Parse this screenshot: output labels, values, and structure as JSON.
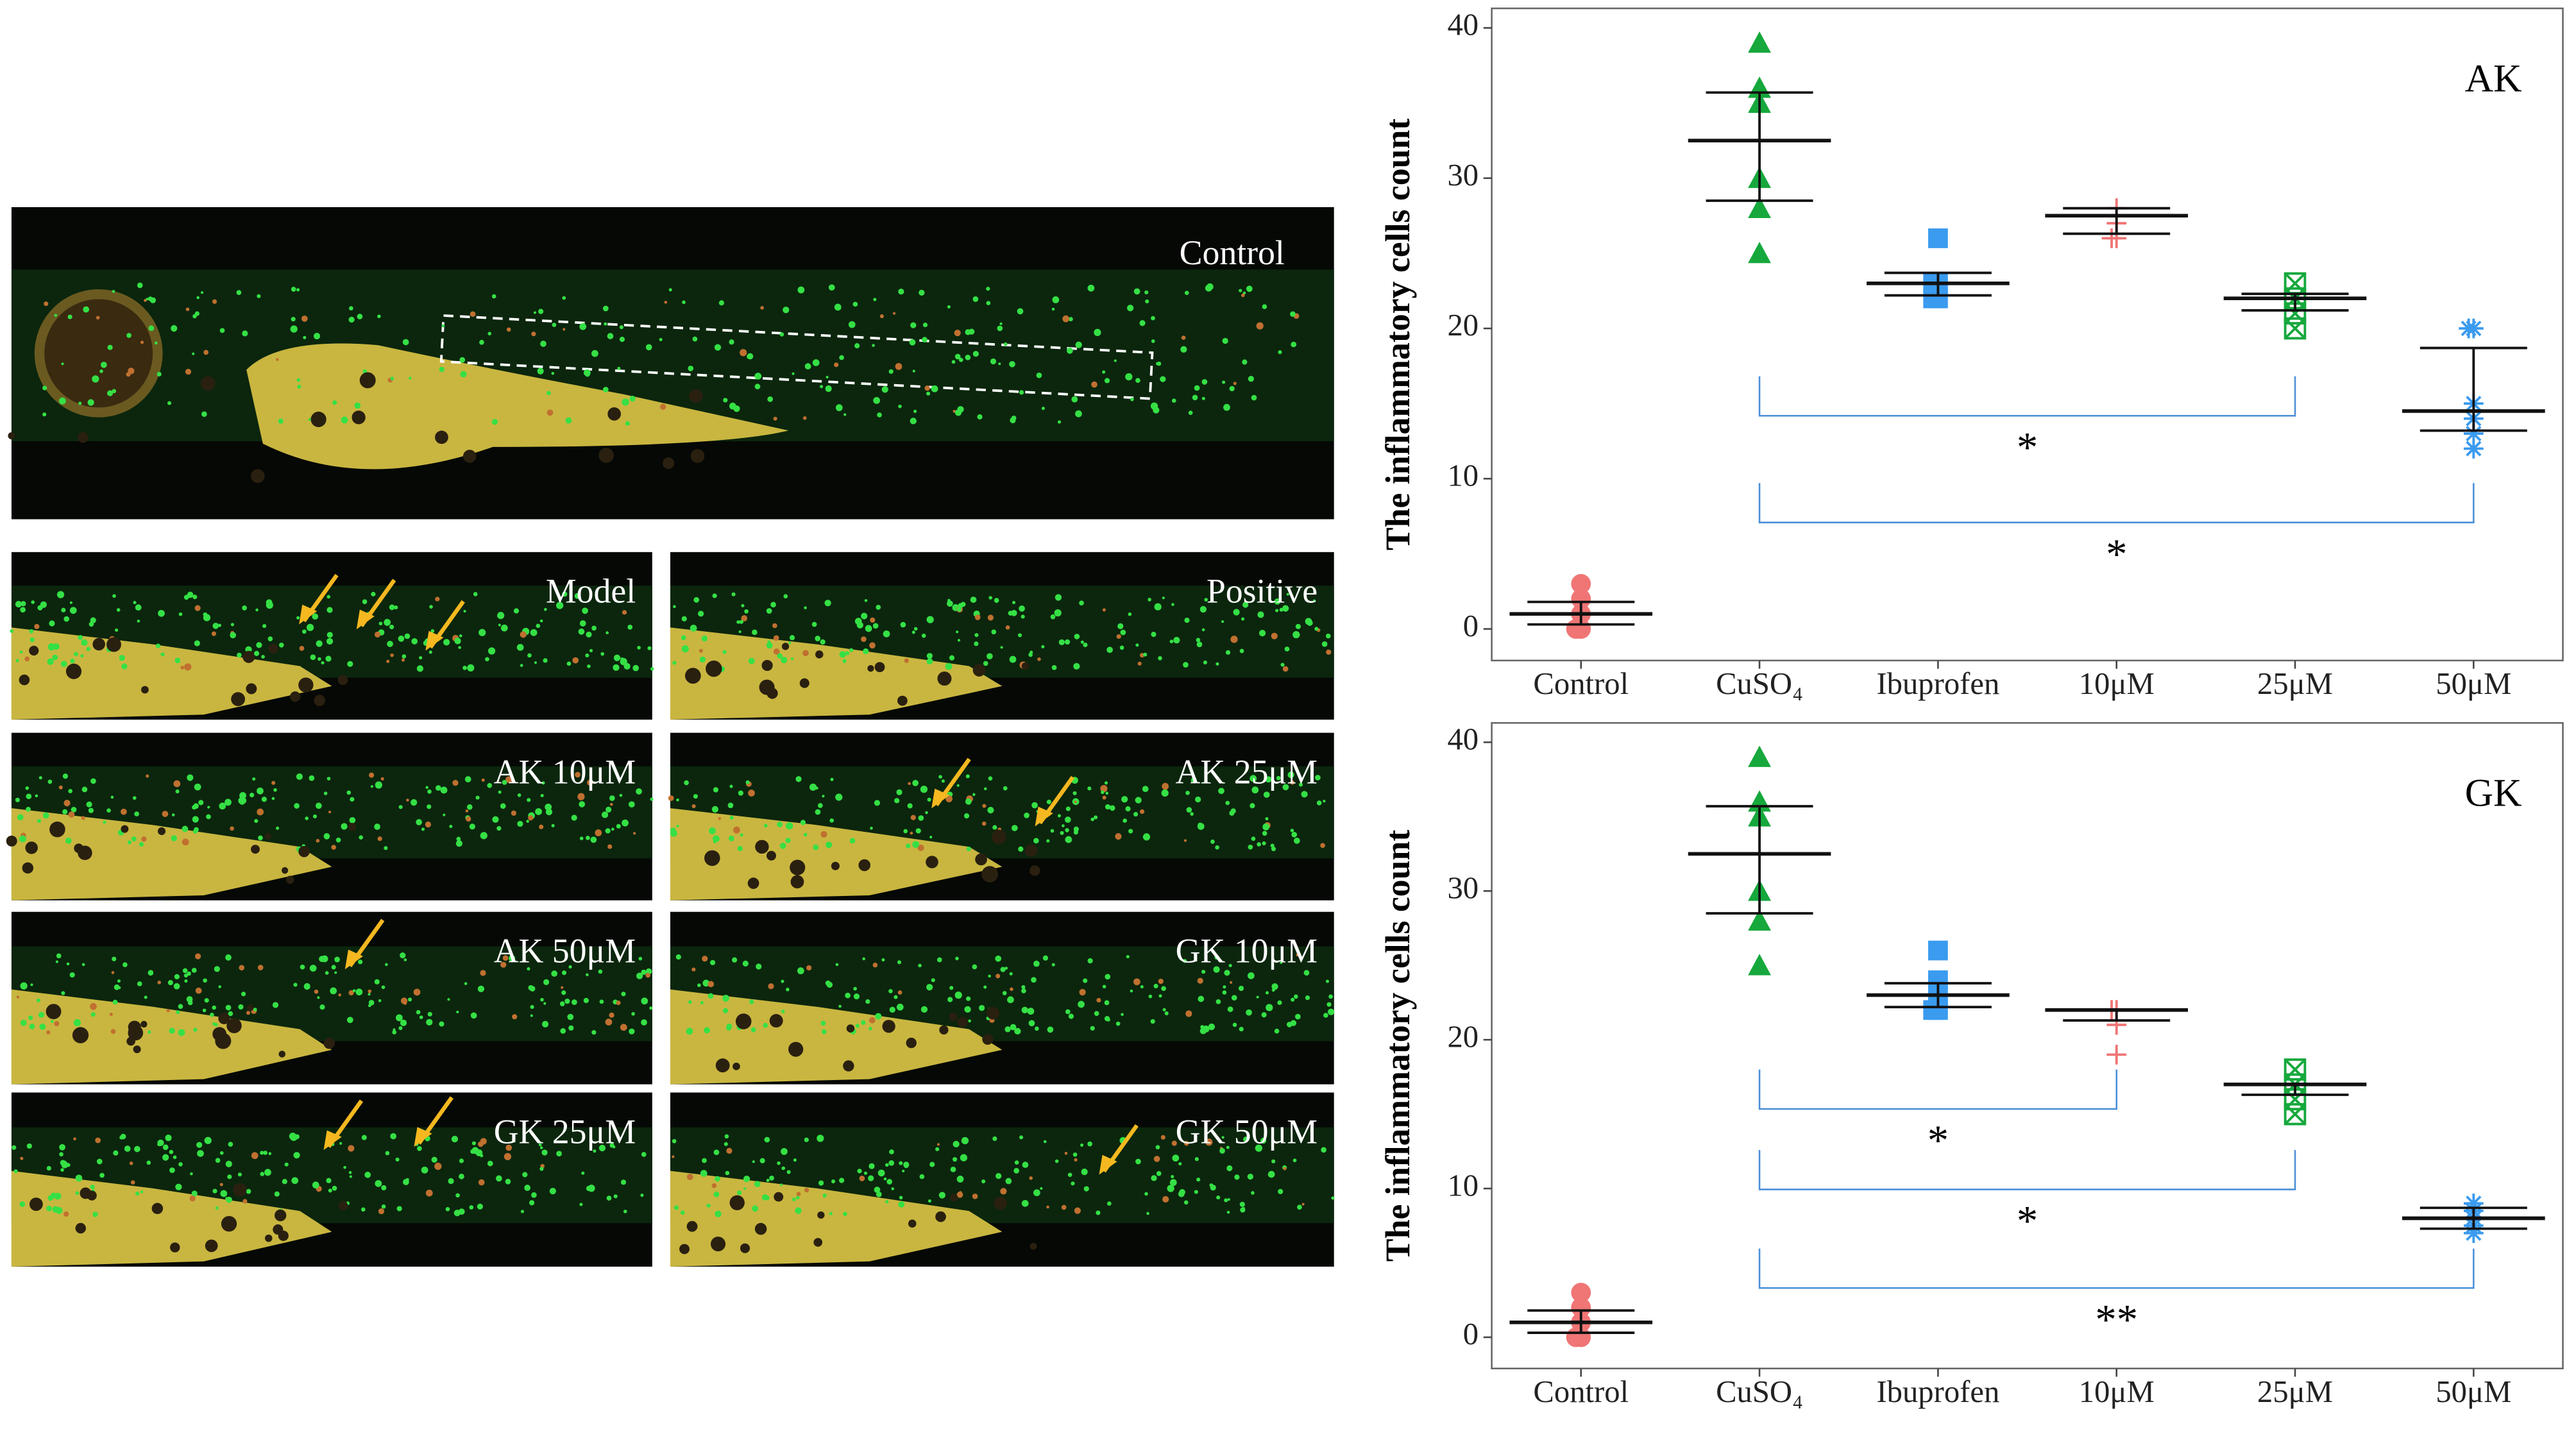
{
  "panels": [
    "Control",
    "Model",
    "Positive",
    "AK 10μM",
    "AK 25μM",
    "AK 50μM",
    "GK 10μM",
    "GK 25μM",
    "GK 50μM"
  ],
  "chart_data": [
    {
      "type": "dotplot",
      "title": "AK",
      "y_label": "The inflammatory cells count",
      "categories": [
        "Control",
        "CuSO₄",
        "Ibuprofen",
        "10μM",
        "25μM",
        "50μM"
      ],
      "colors": [
        "#f07575",
        "#16a83c",
        "#3a9bef",
        "#f07575",
        "#16a83c",
        "#3a9bef"
      ],
      "markers": [
        "circle",
        "triangle",
        "square",
        "plus",
        "boxcross",
        "asterisk"
      ],
      "points": [
        [
          3,
          2,
          1,
          0,
          0
        ],
        [
          39,
          36,
          35,
          30,
          28,
          25
        ],
        [
          26,
          23,
          22,
          22,
          23
        ],
        [
          28,
          27,
          26,
          26
        ],
        [
          23,
          22,
          21,
          20
        ],
        [
          20,
          20,
          15,
          14,
          13,
          12
        ]
      ],
      "means": [
        1,
        32.5,
        23,
        27.5,
        22,
        14.5
      ],
      "upper": [
        1.8,
        35.7,
        23.7,
        28,
        22.3,
        18.7
      ],
      "lower": [
        0.3,
        28.5,
        22.2,
        26.3,
        21.2,
        13.2
      ],
      "ylim": [
        -2.1,
        41.3
      ],
      "yticks": [
        0,
        10,
        20,
        30,
        40
      ],
      "comparisons": [
        {
          "from": "CuSO₄",
          "to": "25μM",
          "label": "*"
        },
        {
          "from": "CuSO₄",
          "to": "50μM",
          "label": "*"
        }
      ]
    },
    {
      "type": "dotplot",
      "title": "GK",
      "y_label": "The inflammatory cells count",
      "categories": [
        "Control",
        "CuSO₄",
        "Ibuprofen",
        "10μM",
        "25μM",
        "50μM"
      ],
      "colors": [
        "#f07575",
        "#16a83c",
        "#3a9bef",
        "#f07575",
        "#16a83c",
        "#3a9bef"
      ],
      "markers": [
        "circle",
        "triangle",
        "square",
        "plus",
        "boxcross",
        "asterisk"
      ],
      "points": [
        [
          3,
          2,
          1,
          0,
          0
        ],
        [
          39,
          36,
          35,
          30,
          28,
          25
        ],
        [
          26,
          24,
          23,
          22,
          22
        ],
        [
          22,
          22,
          21,
          19
        ],
        [
          18,
          17,
          16,
          15
        ],
        [
          9,
          8.5,
          8,
          7.5,
          7
        ]
      ],
      "means": [
        1,
        32.5,
        23,
        22,
        17,
        8
      ],
      "upper": [
        1.8,
        35.7,
        23.8,
        22,
        17,
        8.7
      ],
      "lower": [
        0.3,
        28.5,
        22.2,
        21.3,
        16.3,
        7.3
      ],
      "ylim": [
        -2.1,
        41.3
      ],
      "yticks": [
        0,
        10,
        20,
        30,
        40
      ],
      "comparisons": [
        {
          "from": "CuSO₄",
          "to": "10μM",
          "label": "*"
        },
        {
          "from": "CuSO₄",
          "to": "25μM",
          "label": "*"
        },
        {
          "from": "CuSO₄",
          "to": "50μM",
          "label": "**"
        }
      ]
    }
  ]
}
